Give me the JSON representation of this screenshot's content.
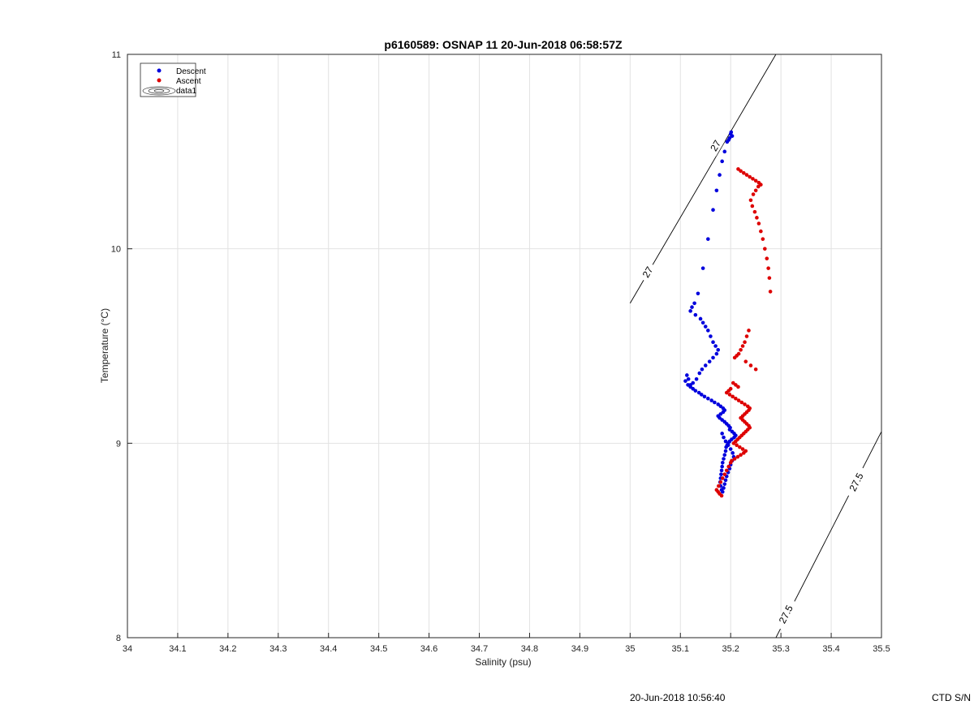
{
  "chart_data": {
    "type": "scatter",
    "title": "p6160589: OSNAP 11 20-Jun-2018 06:58:57Z",
    "xlabel": "Salinity (psu)",
    "ylabel": "Temperature (°C)",
    "xlim": [
      34,
      35.5
    ],
    "ylim": [
      8,
      11
    ],
    "xticks": [
      "34",
      "34.1",
      "34.2",
      "34.3",
      "34.4",
      "34.5",
      "34.6",
      "34.7",
      "34.8",
      "34.9",
      "35",
      "35.1",
      "35.2",
      "35.3",
      "35.4",
      "35.5"
    ],
    "yticks": [
      "8",
      "9",
      "10",
      "11"
    ],
    "grid": true,
    "legend": {
      "position": "top-left",
      "entries": [
        "Descent",
        "Ascent",
        "data1"
      ]
    },
    "contours": [
      {
        "level": "27",
        "points": [
          [
            35.0,
            9.72
          ],
          [
            35.29,
            11.0
          ]
        ],
        "labels": [
          {
            "text": "27",
            "x": 35.035,
            "y": 9.88
          },
          {
            "text": "27",
            "x": 35.17,
            "y": 10.53
          }
        ]
      },
      {
        "level": "27.5",
        "points": [
          [
            35.29,
            8.0
          ],
          [
            35.5,
            9.06
          ]
        ],
        "labels": [
          {
            "text": "27.5",
            "x": 35.31,
            "y": 8.12
          },
          {
            "text": "27.5",
            "x": 35.45,
            "y": 8.8
          }
        ]
      }
    ],
    "series": [
      {
        "name": "Descent",
        "color": "#0000dd",
        "x": [
          35.2,
          35.203,
          35.198,
          35.201,
          35.196,
          35.193,
          35.188,
          35.183,
          35.178,
          35.172,
          35.165,
          35.155,
          35.145,
          35.135,
          35.128,
          35.123,
          35.12,
          35.13,
          35.14,
          35.145,
          35.15,
          35.155,
          35.16,
          35.165,
          35.17,
          35.175,
          35.172,
          35.165,
          35.158,
          35.15,
          35.143,
          35.138,
          35.132,
          35.125,
          35.12,
          35.116,
          35.113,
          35.11,
          35.115,
          35.12,
          35.125,
          35.13,
          35.137,
          35.142,
          35.148,
          35.155,
          35.162,
          35.168,
          35.175,
          35.18,
          35.185,
          35.188,
          35.185,
          35.18,
          35.175,
          35.178,
          35.183,
          35.188,
          35.192,
          35.196,
          35.199,
          35.198,
          35.203,
          35.207,
          35.21,
          35.207,
          35.202,
          35.198,
          35.195,
          35.193,
          35.191,
          35.19,
          35.188,
          35.186,
          35.184,
          35.183,
          35.182,
          35.181,
          35.18,
          35.179,
          35.18,
          35.182,
          35.184,
          35.186,
          35.188,
          35.19,
          35.192,
          35.195,
          35.198,
          35.2,
          35.203,
          35.206,
          35.204,
          35.2,
          35.195,
          35.19,
          35.186,
          35.183
        ],
        "y": [
          10.59,
          10.58,
          10.57,
          10.6,
          10.56,
          10.55,
          10.5,
          10.45,
          10.38,
          10.3,
          10.2,
          10.05,
          9.9,
          9.77,
          9.72,
          9.7,
          9.68,
          9.66,
          9.64,
          9.62,
          9.6,
          9.58,
          9.55,
          9.52,
          9.5,
          9.48,
          9.46,
          9.44,
          9.42,
          9.4,
          9.38,
          9.36,
          9.33,
          9.31,
          9.3,
          9.33,
          9.35,
          9.32,
          9.3,
          9.29,
          9.28,
          9.27,
          9.26,
          9.25,
          9.24,
          9.23,
          9.22,
          9.21,
          9.2,
          9.19,
          9.18,
          9.17,
          9.16,
          9.15,
          9.14,
          9.13,
          9.12,
          9.11,
          9.1,
          9.09,
          9.08,
          9.07,
          9.06,
          9.05,
          9.04,
          9.03,
          9.02,
          9.01,
          9.0,
          8.99,
          8.98,
          8.96,
          8.94,
          8.92,
          8.9,
          8.88,
          8.86,
          8.84,
          8.82,
          8.8,
          8.78,
          8.76,
          8.75,
          8.77,
          8.79,
          8.81,
          8.83,
          8.85,
          8.87,
          8.89,
          8.91,
          8.93,
          8.95,
          8.97,
          8.99,
          9.01,
          9.03,
          9.05
        ]
      },
      {
        "name": "Ascent",
        "color": "#dd0000",
        "x": [
          35.215,
          35.22,
          35.226,
          35.232,
          35.238,
          35.244,
          35.25,
          35.256,
          35.26,
          35.255,
          35.25,
          35.245,
          35.24,
          35.243,
          35.248,
          35.252,
          35.256,
          35.26,
          35.264,
          35.268,
          35.272,
          35.275,
          35.277,
          35.279,
          35.236,
          35.232,
          35.228,
          35.224,
          35.22,
          35.216,
          35.212,
          35.208,
          35.23,
          35.24,
          35.25,
          35.205,
          35.21,
          35.215,
          35.2,
          35.196,
          35.192,
          35.198,
          35.204,
          35.21,
          35.216,
          35.222,
          35.228,
          35.234,
          35.238,
          35.236,
          35.232,
          35.228,
          35.224,
          35.22,
          35.224,
          35.228,
          35.232,
          35.236,
          35.238,
          35.234,
          35.23,
          35.226,
          35.222,
          35.218,
          35.214,
          35.21,
          35.206,
          35.212,
          35.218,
          35.224,
          35.23,
          35.226,
          35.22,
          35.214,
          35.208,
          35.202,
          35.2,
          35.196,
          35.192,
          35.188,
          35.184,
          35.18,
          35.176,
          35.172,
          35.175,
          35.178,
          35.182
        ],
        "y": [
          10.41,
          10.4,
          10.39,
          10.38,
          10.37,
          10.36,
          10.35,
          10.34,
          10.33,
          10.32,
          10.3,
          10.28,
          10.25,
          10.22,
          10.19,
          10.16,
          10.13,
          10.09,
          10.05,
          10.0,
          9.95,
          9.9,
          9.85,
          9.78,
          9.58,
          9.55,
          9.52,
          9.5,
          9.48,
          9.46,
          9.45,
          9.44,
          9.42,
          9.4,
          9.38,
          9.31,
          9.3,
          9.29,
          9.28,
          9.27,
          9.26,
          9.25,
          9.24,
          9.23,
          9.22,
          9.21,
          9.2,
          9.19,
          9.18,
          9.17,
          9.16,
          9.15,
          9.14,
          9.13,
          9.12,
          9.11,
          9.1,
          9.09,
          9.08,
          9.07,
          9.06,
          9.05,
          9.04,
          9.03,
          9.02,
          9.01,
          9.0,
          8.99,
          8.98,
          8.97,
          8.96,
          8.95,
          8.94,
          8.93,
          8.92,
          8.91,
          8.9,
          8.88,
          8.86,
          8.84,
          8.82,
          8.8,
          8.78,
          8.76,
          8.75,
          8.74,
          8.73
        ]
      }
    ]
  },
  "footer": {
    "timestamp": "20-Jun-2018 10:56:40",
    "serial": "CTD S/N"
  }
}
